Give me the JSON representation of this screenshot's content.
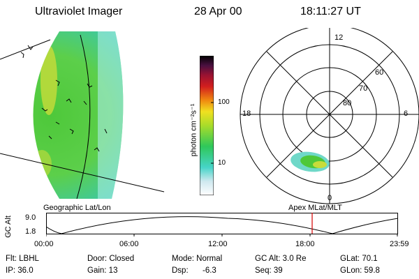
{
  "header": {
    "instrument": "Ultraviolet Imager",
    "date": "28 Apr 00",
    "time": "18:11:27 UT"
  },
  "colorbar": {
    "unit_label": "photon cm⁻²s⁻¹",
    "tick_labels": [
      "100",
      "10"
    ]
  },
  "polar_plot": {
    "mlt_labels": [
      "12",
      "18",
      "6",
      "0"
    ],
    "mlat_labels": [
      "60",
      "70",
      "80"
    ]
  },
  "altitude_plot": {
    "left_title": "Geographic Lat/Lon",
    "right_title": "Apex MLat/MLT",
    "y_axis_label": "GC Alt",
    "y_ticks": [
      "9.0",
      "1.8"
    ],
    "x_ticks": [
      "00:00",
      "06:00",
      "12:00",
      "18:00",
      "23:59"
    ],
    "marker_time": "18:11:27",
    "marker_color": "#d40000"
  },
  "footer": {
    "flt": "Flt: LBHL",
    "ip": "IP: 36.0",
    "door": "Door: Closed",
    "gain": "Gain: 13",
    "mode": "Mode: Normal",
    "dsp_label": "Dsp:",
    "dsp_value": "-6.3",
    "gc_alt": "GC Alt: 3.0 Re",
    "seq": "Seq: 39",
    "glat": "GLat: 70.1",
    "glon": "GLon: 59.8"
  }
}
